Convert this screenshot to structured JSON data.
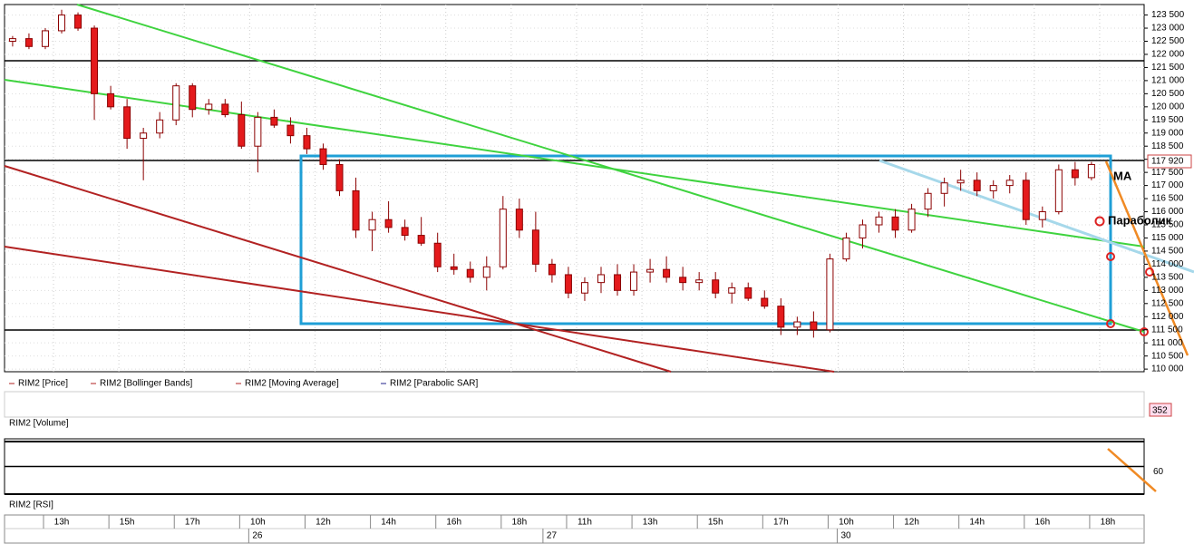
{
  "chart_data": {
    "type": "candlestick",
    "legend": [
      "RIM2 [Price]",
      "RIM2 [Bollinger Bands]",
      "RIM2 [Moving Average]",
      "RIM2 [Parabolic SAR]"
    ],
    "annotations": [
      "MA",
      "Параболик"
    ],
    "last_price": {
      "value": 117920,
      "label": "117 920"
    },
    "up_color": "#ffffff",
    "down_color": "#e41a1c",
    "wick_color": "#8b0000",
    "grid": true,
    "ylim": [
      109900,
      123900
    ],
    "yticks": [
      {
        "value": 110000,
        "label": "110 000"
      },
      {
        "value": 110500,
        "label": "110 500"
      },
      {
        "value": 111000,
        "label": "111 000"
      },
      {
        "value": 111500,
        "label": "111 500"
      },
      {
        "value": 112000,
        "label": "112 000"
      },
      {
        "value": 112500,
        "label": "112 500"
      },
      {
        "value": 113000,
        "label": "113 000"
      },
      {
        "value": 113500,
        "label": "113 500"
      },
      {
        "value": 114000,
        "label": "114 000"
      },
      {
        "value": 114500,
        "label": "114 500"
      },
      {
        "value": 115000,
        "label": "115 000"
      },
      {
        "value": 115500,
        "label": "115 500"
      },
      {
        "value": 116000,
        "label": "116 000"
      },
      {
        "value": 116500,
        "label": "116 500"
      },
      {
        "value": 117000,
        "label": "117 000"
      },
      {
        "value": 117500,
        "label": "117 500"
      },
      {
        "value": 118000,
        "label": "118 000"
      },
      {
        "value": 118500,
        "label": "118 500"
      },
      {
        "value": 119000,
        "label": "119 000"
      },
      {
        "value": 119500,
        "label": "119 500"
      },
      {
        "value": 120000,
        "label": "120 000"
      },
      {
        "value": 120500,
        "label": "120 500"
      },
      {
        "value": 121000,
        "label": "121 000"
      },
      {
        "value": 121500,
        "label": "121 500"
      },
      {
        "value": 122000,
        "label": "122 000"
      },
      {
        "value": 122500,
        "label": "122 500"
      },
      {
        "value": 123000,
        "label": "123 000"
      },
      {
        "value": 123500,
        "label": "123 500"
      }
    ],
    "categories": [
      null,
      null,
      null,
      "13h",
      null,
      null,
      null,
      "15h",
      null,
      null,
      null,
      "17h",
      null,
      null,
      null,
      "10h",
      null,
      null,
      null,
      "12h",
      null,
      null,
      null,
      "14h",
      null,
      null,
      null,
      "16h",
      null,
      null,
      null,
      "18h",
      null,
      null,
      null,
      "11h",
      null,
      null,
      null,
      "13h",
      null,
      null,
      null,
      "15h",
      null,
      null,
      null,
      "17h",
      null,
      null,
      null,
      "10h",
      null,
      null,
      null,
      "12h",
      null,
      null,
      null,
      "14h",
      null,
      null,
      null,
      "16h",
      null,
      null,
      null,
      "18h"
    ],
    "day_labels": [
      null,
      null,
      null,
      null,
      null,
      null,
      null,
      null,
      null,
      null,
      null,
      null,
      null,
      null,
      null,
      "26",
      null,
      null,
      null,
      null,
      null,
      null,
      null,
      null,
      null,
      null,
      null,
      null,
      null,
      null,
      null,
      null,
      null,
      "27",
      null,
      null,
      null,
      null,
      null,
      null,
      null,
      null,
      null,
      null,
      null,
      null,
      null,
      null,
      null,
      null,
      null,
      "30",
      null,
      null,
      null,
      null,
      null,
      null,
      null,
      null,
      null,
      null,
      null,
      null,
      null,
      null,
      null,
      null
    ],
    "ohlc": [
      [
        122500,
        122700,
        122300,
        122600
      ],
      [
        122600,
        122800,
        122200,
        122300
      ],
      [
        122300,
        123000,
        122200,
        122900
      ],
      [
        122900,
        123700,
        122800,
        123500
      ],
      [
        123500,
        123600,
        122900,
        123000
      ],
      [
        123000,
        123100,
        119500,
        120500
      ],
      [
        120500,
        120800,
        119900,
        120000
      ],
      [
        120000,
        120300,
        118400,
        118800
      ],
      [
        118800,
        119200,
        117200,
        119000
      ],
      [
        119000,
        119800,
        118800,
        119500
      ],
      [
        119500,
        120900,
        119300,
        120800
      ],
      [
        120800,
        120900,
        119600,
        119900
      ],
      [
        119900,
        120300,
        119700,
        120100
      ],
      [
        120100,
        120300,
        119600,
        119700
      ],
      [
        119700,
        120200,
        118400,
        118500
      ],
      [
        118500,
        119800,
        117500,
        119600
      ],
      [
        119600,
        119900,
        119200,
        119300
      ],
      [
        119300,
        119600,
        118600,
        118900
      ],
      [
        118900,
        119200,
        118200,
        118400
      ],
      [
        118400,
        118600,
        117600,
        117800
      ],
      [
        117800,
        118000,
        116600,
        116800
      ],
      [
        116800,
        117300,
        115000,
        115300
      ],
      [
        115300,
        116000,
        114500,
        115700
      ],
      [
        115700,
        116400,
        115200,
        115400
      ],
      [
        115400,
        115700,
        114900,
        115100
      ],
      [
        115100,
        115800,
        114700,
        114800
      ],
      [
        114800,
        115200,
        113700,
        113900
      ],
      [
        113900,
        114400,
        113600,
        113800
      ],
      [
        113800,
        114100,
        113300,
        113500
      ],
      [
        113500,
        114300,
        113000,
        113900
      ],
      [
        113900,
        116600,
        113800,
        116100
      ],
      [
        116100,
        116500,
        115000,
        115300
      ],
      [
        115300,
        116000,
        113700,
        114000
      ],
      [
        114000,
        114200,
        113300,
        113600
      ],
      [
        113600,
        113900,
        112700,
        112900
      ],
      [
        112900,
        113500,
        112600,
        113300
      ],
      [
        113300,
        113900,
        112900,
        113600
      ],
      [
        113600,
        114000,
        112800,
        113000
      ],
      [
        113000,
        114000,
        112800,
        113700
      ],
      [
        113700,
        114200,
        113300,
        113800
      ],
      [
        113800,
        114300,
        113300,
        113500
      ],
      [
        113500,
        113900,
        113000,
        113300
      ],
      [
        113300,
        113700,
        113000,
        113400
      ],
      [
        113400,
        113700,
        112700,
        112900
      ],
      [
        112900,
        113300,
        112500,
        113100
      ],
      [
        113100,
        113300,
        112600,
        112700
      ],
      [
        112700,
        113000,
        112300,
        112400
      ],
      [
        112400,
        112700,
        111300,
        111600
      ],
      [
        111600,
        112000,
        111300,
        111800
      ],
      [
        111800,
        112200,
        111200,
        111500
      ],
      [
        111500,
        114400,
        111400,
        114200
      ],
      [
        114200,
        115200,
        114100,
        115000
      ],
      [
        115000,
        115700,
        114600,
        115500
      ],
      [
        115500,
        116000,
        115200,
        115800
      ],
      [
        115800,
        116100,
        115000,
        115300
      ],
      [
        115300,
        116300,
        115200,
        116100
      ],
      [
        116100,
        116900,
        115800,
        116700
      ],
      [
        116700,
        117300,
        116200,
        117100
      ],
      [
        117100,
        117600,
        116800,
        117200
      ],
      [
        117200,
        117500,
        116600,
        116800
      ],
      [
        116800,
        117200,
        116500,
        117000
      ],
      [
        117000,
        117400,
        116700,
        117200
      ],
      [
        117200,
        117500,
        115500,
        115700
      ],
      [
        115700,
        116200,
        115400,
        116000
      ],
      [
        116000,
        117800,
        115900,
        117600
      ],
      [
        117600,
        117900,
        117000,
        117300
      ],
      [
        117300,
        117900,
        117200,
        117800
      ],
      null
    ],
    "volume": {
      "label": "RIM2 [Volume]",
      "value": 352
    },
    "rsi": {
      "label": "RIM2 [RSI]",
      "ylim": [
        40,
        80
      ],
      "yticks": [
        60
      ]
    }
  }
}
